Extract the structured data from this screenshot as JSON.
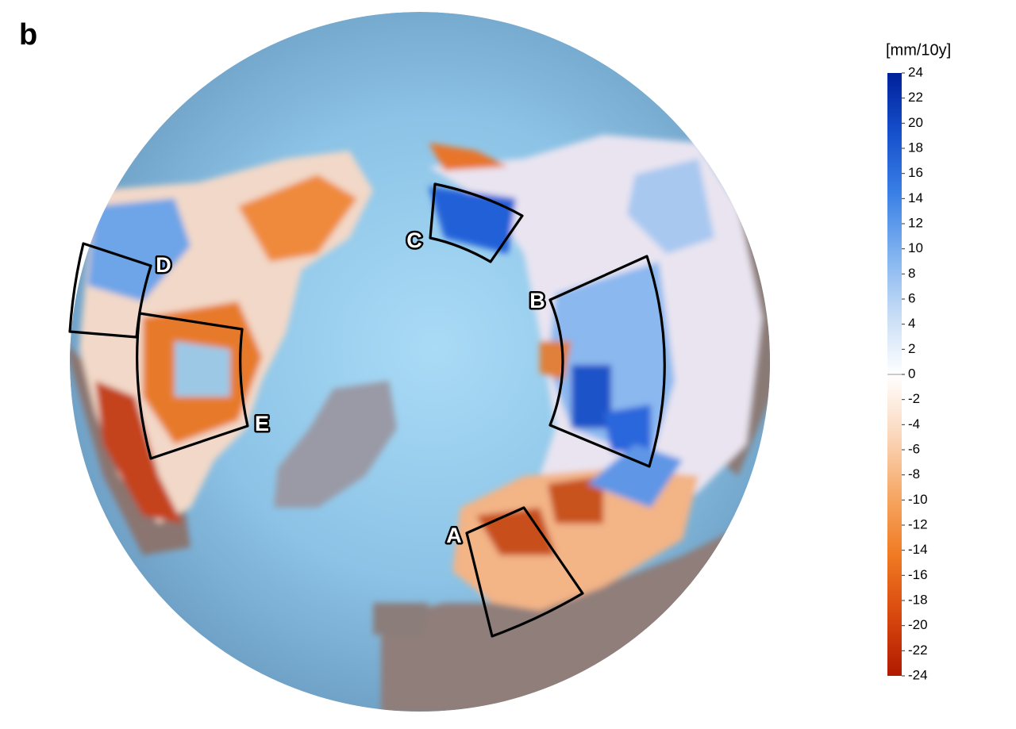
{
  "panel_label": "b",
  "colorbar": {
    "title": "[mm/10y]",
    "lim": [
      -24,
      24
    ],
    "ticks": [
      24,
      22,
      20,
      18,
      16,
      14,
      12,
      10,
      8,
      6,
      4,
      2,
      0,
      -2,
      -4,
      -6,
      -8,
      -10,
      -12,
      -14,
      -16,
      -18,
      -20,
      -22,
      -24
    ],
    "colors": [
      "#b01a00",
      "#d8480e",
      "#f07a22",
      "#f6a866",
      "#fbd8bd",
      "#ffffff",
      "#c6dcf6",
      "#7fb2ef",
      "#3a80e6",
      "#1650cc",
      "#00209a"
    ]
  },
  "regions": [
    {
      "label": "A"
    },
    {
      "label": "B"
    },
    {
      "label": "C"
    },
    {
      "label": "D"
    },
    {
      "label": "E"
    }
  ]
}
